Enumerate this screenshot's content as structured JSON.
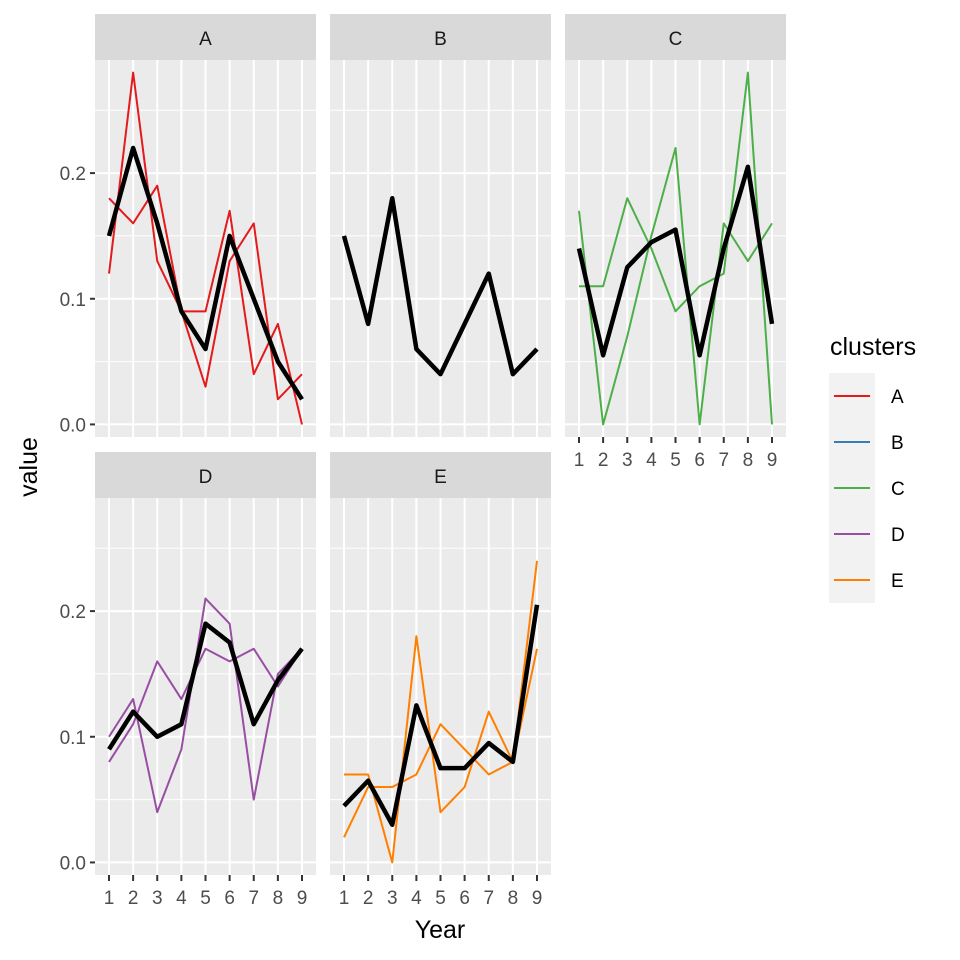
{
  "chart_data": {
    "type": "line",
    "title": "",
    "xlabel": "Year",
    "ylabel": "value",
    "x": [
      1,
      2,
      3,
      4,
      5,
      6,
      7,
      8,
      9
    ],
    "xlim": [
      1,
      9
    ],
    "ylim": [
      -0.01,
      0.29
    ],
    "yticks": [
      0.0,
      0.1,
      0.2
    ],
    "ytick_labels": [
      "0.0",
      "0.1",
      "0.2"
    ],
    "grid": true,
    "legend": {
      "title": "clusters",
      "placement": "right",
      "entries": [
        {
          "label": "A",
          "color": "#e41a1c"
        },
        {
          "label": "B",
          "color": "#377eb8"
        },
        {
          "label": "C",
          "color": "#4daf4a"
        },
        {
          "label": "D",
          "color": "#984ea3"
        },
        {
          "label": "E",
          "color": "#ff7f00"
        }
      ]
    },
    "mean_line_color": "#000000",
    "panels": [
      {
        "label": "A",
        "color": "#e41a1c",
        "series": [
          {
            "values": [
              0.12,
              0.28,
              0.13,
              0.09,
              0.09,
              0.17,
              0.04,
              0.08,
              0.0
            ]
          },
          {
            "values": [
              0.18,
              0.16,
              0.19,
              0.09,
              0.03,
              0.13,
              0.16,
              0.02,
              0.04
            ]
          }
        ],
        "mean": [
          0.15,
          0.22,
          0.16,
          0.09,
          0.06,
          0.15,
          0.1,
          0.05,
          0.02
        ]
      },
      {
        "label": "B",
        "color": "#377eb8",
        "series": [],
        "mean": [
          0.15,
          0.08,
          0.18,
          0.06,
          0.04,
          0.08,
          0.12,
          0.04,
          0.06
        ]
      },
      {
        "label": "C",
        "color": "#4daf4a",
        "series": [
          {
            "values": [
              0.17,
              0.0,
              0.07,
              0.15,
              0.22,
              0.0,
              0.16,
              0.13,
              0.16
            ]
          },
          {
            "values": [
              0.11,
              0.11,
              0.18,
              0.14,
              0.09,
              0.11,
              0.12,
              0.28,
              0.0
            ]
          }
        ],
        "mean": [
          0.14,
          0.055,
          0.125,
          0.145,
          0.155,
          0.055,
          0.14,
          0.205,
          0.08
        ]
      },
      {
        "label": "D",
        "color": "#984ea3",
        "series": [
          {
            "values": [
              0.1,
              0.13,
              0.04,
              0.09,
              0.21,
              0.19,
              0.05,
              0.15,
              0.17
            ]
          },
          {
            "values": [
              0.08,
              0.11,
              0.16,
              0.13,
              0.17,
              0.16,
              0.17,
              0.14,
              0.17
            ]
          }
        ],
        "mean": [
          0.09,
          0.12,
          0.1,
          0.11,
          0.19,
          0.175,
          0.11,
          0.145,
          0.17
        ]
      },
      {
        "label": "E",
        "color": "#ff7f00",
        "series": [
          {
            "values": [
              0.07,
              0.07,
              0.0,
              0.18,
              0.04,
              0.06,
              0.12,
              0.08,
              0.24
            ]
          },
          {
            "values": [
              0.02,
              0.06,
              0.06,
              0.07,
              0.11,
              0.09,
              0.07,
              0.08,
              0.17
            ]
          }
        ],
        "mean": [
          0.045,
          0.065,
          0.03,
          0.125,
          0.075,
          0.075,
          0.095,
          0.08,
          0.205
        ]
      }
    ]
  }
}
